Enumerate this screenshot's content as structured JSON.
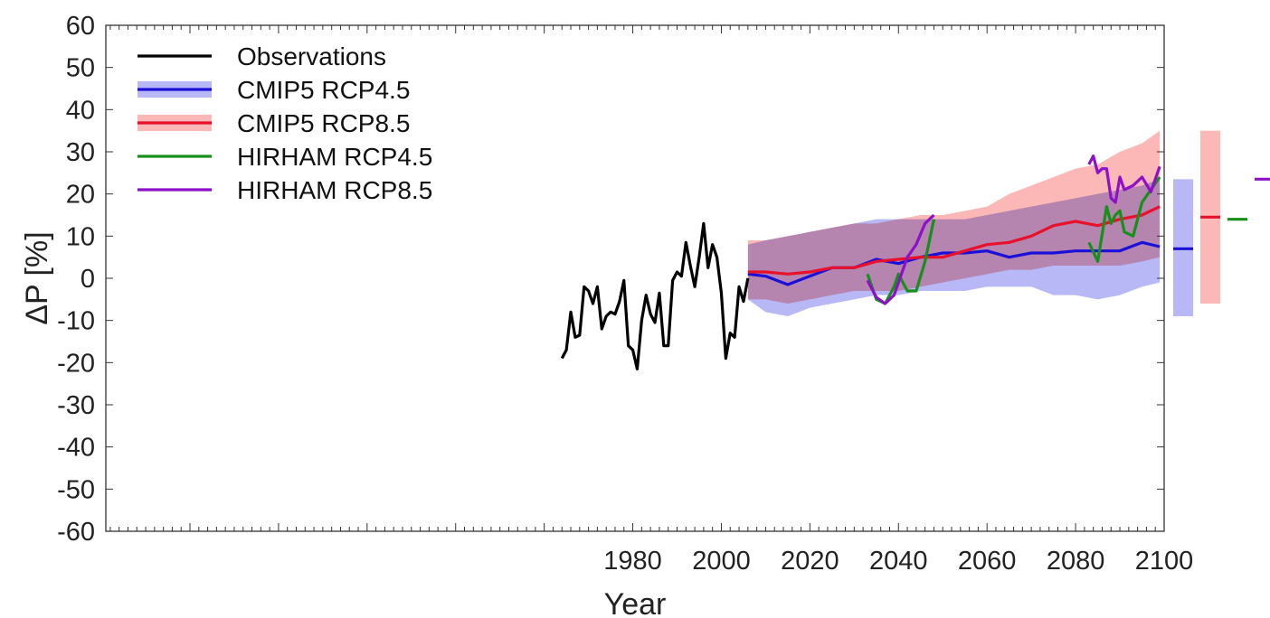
{
  "chart_data": {
    "type": "line",
    "title": "",
    "xlabel": "Year",
    "ylabel": "ΔP [%]",
    "xlim": [
      1861,
      2100
    ],
    "ylim": [
      -60,
      60
    ],
    "xticks": [
      1980,
      2000,
      2020,
      2040,
      2060,
      2080,
      2100
    ],
    "xtick_labels": [
      "1980",
      "2000",
      "2020",
      "2040",
      "2060",
      "2080",
      "2100"
    ],
    "yticks": [
      -60,
      -50,
      -40,
      -30,
      -20,
      -10,
      0,
      10,
      20,
      30,
      40,
      50,
      60
    ],
    "ytick_labels": [
      "-60",
      "-50",
      "-40",
      "-30",
      "-20",
      "-10",
      "0",
      "10",
      "20",
      "30",
      "40",
      "50",
      "60"
    ],
    "grid": false,
    "legend_position": "top-left",
    "colors": {
      "observations": "#000000",
      "rcp45": "#1a10d8",
      "rcp45_band": "#b8b8f6",
      "rcp85": "#e8102a",
      "rcp85_band": "#fcb8b6",
      "hirham45": "#16901a",
      "hirham85": "#8e10c8"
    },
    "legend": [
      {
        "key": "observations",
        "label": "Observations"
      },
      {
        "key": "rcp45",
        "label": "CMIP5 RCP4.5"
      },
      {
        "key": "rcp85",
        "label": "CMIP5 RCP8.5"
      },
      {
        "key": "hirham45",
        "label": "HIRHAM RCP4.5"
      },
      {
        "key": "hirham85",
        "label": "HIRHAM RCP8.5"
      }
    ],
    "series": [
      {
        "name": "Observations",
        "x": [
          1964,
          1965,
          1966,
          1967,
          1968,
          1969,
          1970,
          1971,
          1972,
          1973,
          1974,
          1975,
          1976,
          1977,
          1978,
          1979,
          1980,
          1981,
          1982,
          1983,
          1984,
          1985,
          1986,
          1987,
          1988,
          1989,
          1990,
          1991,
          1992,
          1993,
          1994,
          1995,
          1996,
          1997,
          1998,
          1999,
          2000,
          2001,
          2002,
          2003,
          2004,
          2005,
          2006
        ],
        "y": [
          -19,
          -17,
          -8,
          -14,
          -13.5,
          -2,
          -3,
          -6,
          -2,
          -12,
          -9,
          -8,
          -8.5,
          -5.5,
          -0.5,
          -16,
          -17,
          -21.5,
          -10,
          -4,
          -8.5,
          -10.5,
          -3.5,
          -16,
          -16,
          -0.5,
          1.5,
          0.5,
          8.5,
          3,
          -2,
          5,
          13,
          2.5,
          8,
          5,
          -3.5,
          -19,
          -13,
          -14,
          -2,
          -5.5,
          0
        ]
      },
      {
        "name": "CMIP5 RCP4.5",
        "x": [
          2006,
          2010,
          2015,
          2020,
          2025,
          2030,
          2035,
          2040,
          2045,
          2050,
          2055,
          2060,
          2065,
          2070,
          2075,
          2080,
          2085,
          2090,
          2095,
          2099
        ],
        "y": [
          1,
          0.5,
          -1.5,
          0.5,
          2.5,
          2.5,
          4.5,
          3.5,
          5,
          6,
          6,
          6.5,
          5,
          6,
          6,
          6.5,
          6.5,
          6.5,
          8.5,
          7.5
        ],
        "lower": [
          -5,
          -8,
          -9,
          -7,
          -6,
          -5,
          -4,
          -4,
          -3,
          -3,
          -3,
          -2,
          -2,
          -2,
          -4,
          -4,
          -5,
          -4,
          -2,
          -1
        ],
        "upper": [
          8,
          9,
          10,
          11,
          12,
          13,
          14,
          14,
          14,
          14,
          14,
          15,
          16,
          17,
          18,
          19,
          20,
          21,
          22,
          23.5
        ]
      },
      {
        "name": "CMIP5 RCP8.5",
        "x": [
          2006,
          2010,
          2015,
          2020,
          2025,
          2030,
          2035,
          2040,
          2045,
          2050,
          2055,
          2060,
          2065,
          2070,
          2075,
          2080,
          2085,
          2090,
          2095,
          2099
        ],
        "y": [
          1.5,
          1.5,
          1,
          1.5,
          2.5,
          2.5,
          4,
          4.5,
          5,
          5,
          6.5,
          8,
          8.5,
          10,
          12.5,
          13.5,
          12.5,
          14,
          15,
          17
        ],
        "lower": [
          -5,
          -5,
          -6,
          -5,
          -4,
          -3,
          -3,
          -3,
          -2,
          -1,
          0,
          1,
          2,
          2,
          3,
          3,
          3,
          3,
          4,
          5
        ],
        "upper": [
          9,
          9,
          10,
          11,
          12,
          13,
          13,
          14,
          15,
          15,
          16,
          17,
          20,
          22,
          24,
          26,
          27,
          30,
          32,
          35
        ]
      },
      {
        "name": "HIRHAM RCP4.5",
        "x": [
          2033,
          2035,
          2037,
          2039,
          2040,
          2042,
          2044,
          2046,
          2048,
          2083,
          2085,
          2087,
          2088,
          2089,
          2090,
          2091,
          2093,
          2095,
          2097,
          2099
        ],
        "y": [
          1,
          -5,
          -6,
          -2,
          1,
          -3,
          -3,
          4,
          14,
          8.5,
          4,
          17,
          13,
          15,
          16,
          11,
          10,
          18,
          21,
          24
        ]
      },
      {
        "name": "HIRHAM RCP8.5",
        "x": [
          2033,
          2035,
          2037,
          2039,
          2041,
          2042,
          2044,
          2046,
          2048,
          2083,
          2084,
          2085,
          2086,
          2087,
          2088,
          2089,
          2090,
          2091,
          2093,
          2095,
          2097,
          2099
        ],
        "y": [
          -0.5,
          -4.5,
          -6,
          -4,
          2,
          5,
          8,
          13,
          15,
          27,
          29,
          25,
          26,
          26,
          19,
          18,
          24,
          21,
          22,
          24,
          20.5,
          26.5
        ]
      }
    ],
    "side_ranges": [
      {
        "key": "rcp45",
        "low": -9,
        "high": 23.5,
        "mean": 7
      },
      {
        "key": "rcp85",
        "low": -6,
        "high": 35,
        "mean": 14.5
      },
      {
        "key": "hirham45",
        "mean": 14
      },
      {
        "key": "hirham85",
        "mean": 23.5
      }
    ]
  }
}
